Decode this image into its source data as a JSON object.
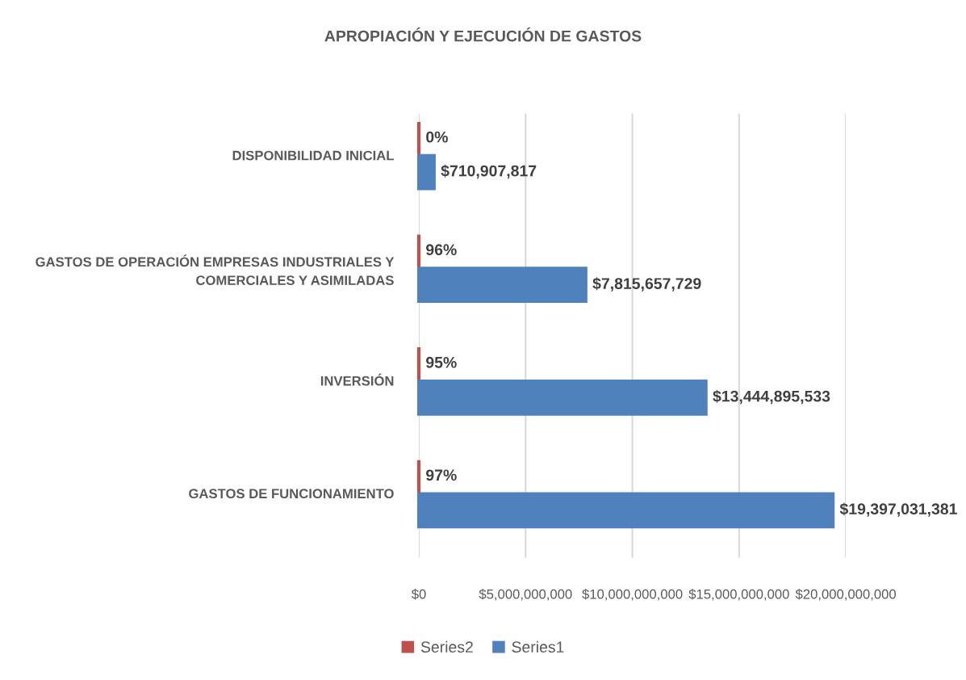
{
  "chart_data": {
    "type": "bar",
    "orientation": "horizontal",
    "title": "APROPIACIÓN Y EJECUCIÓN DE GASTOS",
    "categories": [
      "DISPONIBILIDAD INICIAL",
      "GASTOS DE OPERACIÓN EMPRESAS INDUSTRIALES Y\nCOMERCIALES Y ASIMILADAS",
      "INVERSIÓN",
      "GASTOS DE FUNCIONAMIENTO"
    ],
    "series": [
      {
        "name": "Series2",
        "color": "#c0504d",
        "values": [
          0,
          0.96,
          0.95,
          0.97
        ],
        "value_labels": [
          "0%",
          "96%",
          "95%",
          "97%"
        ]
      },
      {
        "name": "Series1",
        "color": "#4f81bd",
        "values": [
          710907817,
          7815657729,
          13444895533,
          19397031381
        ],
        "value_labels": [
          "$710,907,817",
          "$7,815,657,729",
          "$13,444,895,533",
          "$19,397,031,381"
        ]
      }
    ],
    "xlim": [
      0,
      20000000000
    ],
    "xticks": [
      {
        "value": 0,
        "label": "$0"
      },
      {
        "value": 5000000000,
        "label": "$5,000,000,000"
      },
      {
        "value": 10000000000,
        "label": "$10,000,000,000"
      },
      {
        "value": 15000000000,
        "label": "$15,000,000,000"
      },
      {
        "value": 20000000000,
        "label": "$20,000,000,000"
      }
    ],
    "grid": "x",
    "legend": "bottom"
  }
}
